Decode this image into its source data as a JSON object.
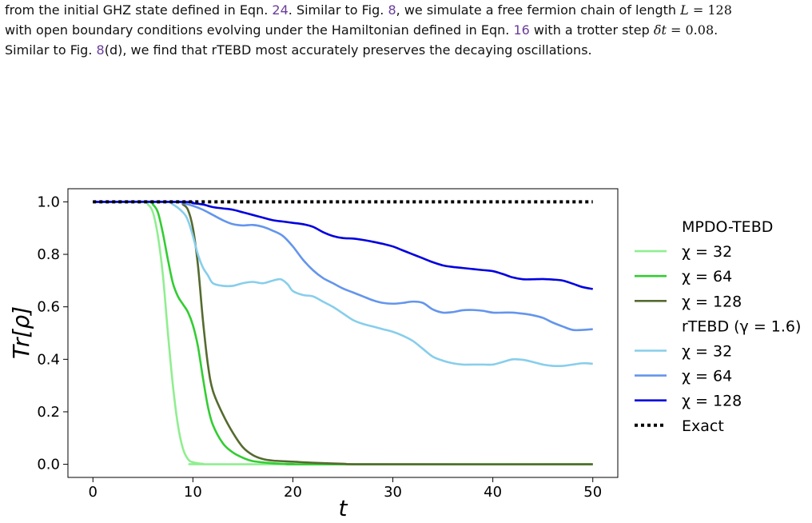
{
  "caption": {
    "line1": {
      "t1": "from the initial GHZ state defined in Eqn. ",
      "r1": "24",
      "t2": ". Similar to Fig. ",
      "r2": "8",
      "t3": ", we simulate a free fermion chain of length ",
      "m1": "L",
      "m2": " = 128"
    },
    "line2": {
      "t1": "with open boundary conditions evolving under the Hamiltonian defined in Eqn. ",
      "r1": "16",
      "t2": " with a trotter step ",
      "m1": "δt",
      "m2": " = 0.08",
      "t3": "."
    },
    "line3": {
      "t1": "Similar to Fig. ",
      "r1": "8",
      "t2": "(d), we find that rTEBD most accurately preserves the decaying oscillations."
    }
  },
  "chart_data": {
    "type": "line",
    "xlabel": "t",
    "ylabel": "Tr[ρ]",
    "xlim": [
      -2.5,
      52.5
    ],
    "ylim": [
      -0.05,
      1.05
    ],
    "xticks": [
      0,
      10,
      20,
      30,
      40,
      50
    ],
    "xtick_labels": [
      "0",
      "10",
      "20",
      "30",
      "40",
      "50"
    ],
    "yticks": [
      0.0,
      0.2,
      0.4,
      0.6,
      0.8,
      1.0
    ],
    "ytick_labels": [
      "0.0",
      "0.2",
      "0.4",
      "0.6",
      "0.8",
      "1.0"
    ],
    "grid": false,
    "legend_position": "outside-right",
    "legend_groups": [
      "MPDO-TEBD",
      "rTEBD (γ = 1.6)"
    ],
    "series": [
      {
        "name": "χ = 32",
        "group": "MPDO-TEBD",
        "color": "#90ee90",
        "dashed": false,
        "points": [
          [
            0,
            1.0
          ],
          [
            5,
            1.0
          ],
          [
            5.5,
            0.99
          ],
          [
            6,
            0.96
          ],
          [
            6.5,
            0.87
          ],
          [
            7,
            0.72
          ],
          [
            7.5,
            0.5
          ],
          [
            8,
            0.3
          ],
          [
            8.5,
            0.15
          ],
          [
            9,
            0.06
          ],
          [
            9.5,
            0.02
          ],
          [
            10,
            0.008
          ],
          [
            11,
            0.002
          ],
          [
            13,
            0.0
          ],
          [
            50,
            0.0
          ]
        ]
      },
      {
        "name": "χ = 64",
        "group": "MPDO-TEBD",
        "color": "#32cd32",
        "dashed": false,
        "points": [
          [
            0,
            1.0
          ],
          [
            5.5,
            1.0
          ],
          [
            6,
            0.99
          ],
          [
            6.5,
            0.96
          ],
          [
            7,
            0.88
          ],
          [
            7.5,
            0.78
          ],
          [
            8,
            0.69
          ],
          [
            8.5,
            0.64
          ],
          [
            9,
            0.61
          ],
          [
            9.5,
            0.58
          ],
          [
            10,
            0.53
          ],
          [
            10.5,
            0.45
          ],
          [
            11,
            0.33
          ],
          [
            11.5,
            0.22
          ],
          [
            12,
            0.15
          ],
          [
            13,
            0.08
          ],
          [
            14,
            0.045
          ],
          [
            15,
            0.025
          ],
          [
            16,
            0.012
          ],
          [
            18,
            0.004
          ],
          [
            20,
            0.001
          ],
          [
            22,
            0.0
          ],
          [
            50,
            0.0
          ]
        ]
      },
      {
        "name": "χ = 128",
        "group": "MPDO-TEBD",
        "color": "#556b2f",
        "dashed": false,
        "points": [
          [
            0,
            1.0
          ],
          [
            8.5,
            1.0
          ],
          [
            9,
            0.99
          ],
          [
            9.5,
            0.97
          ],
          [
            10,
            0.9
          ],
          [
            10.5,
            0.76
          ],
          [
            11,
            0.55
          ],
          [
            11.5,
            0.38
          ],
          [
            12,
            0.28
          ],
          [
            13,
            0.19
          ],
          [
            14,
            0.12
          ],
          [
            15,
            0.065
          ],
          [
            16,
            0.035
          ],
          [
            17,
            0.02
          ],
          [
            18,
            0.014
          ],
          [
            20,
            0.01
          ],
          [
            22,
            0.006
          ],
          [
            25,
            0.002
          ],
          [
            28,
            0.0
          ],
          [
            50,
            0.0
          ]
        ]
      },
      {
        "name": "χ = 32",
        "group": "rTEBD (γ = 1.6)",
        "color": "#87ceeb",
        "dashed": false,
        "points": [
          [
            0,
            1.0
          ],
          [
            7,
            1.0
          ],
          [
            8,
            0.99
          ],
          [
            9,
            0.96
          ],
          [
            9.5,
            0.93
          ],
          [
            10,
            0.87
          ],
          [
            10.5,
            0.8
          ],
          [
            11,
            0.75
          ],
          [
            11.5,
            0.72
          ],
          [
            12,
            0.69
          ],
          [
            13,
            0.68
          ],
          [
            14,
            0.68
          ],
          [
            15,
            0.69
          ],
          [
            16,
            0.695
          ],
          [
            17,
            0.69
          ],
          [
            18,
            0.7
          ],
          [
            18.8,
            0.705
          ],
          [
            19.5,
            0.685
          ],
          [
            20,
            0.66
          ],
          [
            21,
            0.645
          ],
          [
            22,
            0.64
          ],
          [
            23,
            0.62
          ],
          [
            24,
            0.6
          ],
          [
            25,
            0.575
          ],
          [
            26,
            0.55
          ],
          [
            27,
            0.535
          ],
          [
            28,
            0.525
          ],
          [
            29,
            0.515
          ],
          [
            30,
            0.505
          ],
          [
            31,
            0.49
          ],
          [
            32,
            0.47
          ],
          [
            33,
            0.44
          ],
          [
            34,
            0.41
          ],
          [
            35,
            0.395
          ],
          [
            36,
            0.385
          ],
          [
            37,
            0.38
          ],
          [
            38,
            0.38
          ],
          [
            39,
            0.38
          ],
          [
            40,
            0.38
          ],
          [
            41,
            0.39
          ],
          [
            42,
            0.4
          ],
          [
            43,
            0.398
          ],
          [
            44,
            0.39
          ],
          [
            45,
            0.38
          ],
          [
            46,
            0.375
          ],
          [
            47,
            0.375
          ],
          [
            48,
            0.38
          ],
          [
            49,
            0.385
          ],
          [
            50,
            0.383
          ]
        ]
      },
      {
        "name": "χ = 64",
        "group": "rTEBD (γ = 1.6)",
        "color": "#6495ed",
        "dashed": false,
        "points": [
          [
            0,
            1.0
          ],
          [
            8,
            1.0
          ],
          [
            9,
            0.995
          ],
          [
            10,
            0.985
          ],
          [
            11,
            0.97
          ],
          [
            12,
            0.95
          ],
          [
            13,
            0.93
          ],
          [
            14,
            0.915
          ],
          [
            15,
            0.91
          ],
          [
            16,
            0.912
          ],
          [
            17,
            0.905
          ],
          [
            18,
            0.89
          ],
          [
            19,
            0.87
          ],
          [
            20,
            0.83
          ],
          [
            21,
            0.78
          ],
          [
            22,
            0.74
          ],
          [
            23,
            0.71
          ],
          [
            24,
            0.69
          ],
          [
            25,
            0.67
          ],
          [
            26,
            0.655
          ],
          [
            27,
            0.64
          ],
          [
            28,
            0.625
          ],
          [
            29,
            0.615
          ],
          [
            30,
            0.612
          ],
          [
            31,
            0.615
          ],
          [
            32,
            0.62
          ],
          [
            33,
            0.615
          ],
          [
            34,
            0.59
          ],
          [
            35,
            0.578
          ],
          [
            36,
            0.58
          ],
          [
            37,
            0.587
          ],
          [
            38,
            0.588
          ],
          [
            39,
            0.585
          ],
          [
            40,
            0.578
          ],
          [
            41,
            0.578
          ],
          [
            42,
            0.578
          ],
          [
            43,
            0.574
          ],
          [
            44,
            0.568
          ],
          [
            45,
            0.558
          ],
          [
            46,
            0.54
          ],
          [
            47,
            0.525
          ],
          [
            48,
            0.512
          ],
          [
            49,
            0.512
          ],
          [
            50,
            0.515
          ]
        ]
      },
      {
        "name": "χ = 128",
        "group": "rTEBD (γ = 1.6)",
        "color": "#0000e0",
        "dashed": false,
        "points": [
          [
            0,
            1.0
          ],
          [
            9,
            1.0
          ],
          [
            10,
            0.995
          ],
          [
            11,
            0.99
          ],
          [
            12,
            0.98
          ],
          [
            13,
            0.975
          ],
          [
            14,
            0.97
          ],
          [
            15,
            0.96
          ],
          [
            16,
            0.95
          ],
          [
            17,
            0.94
          ],
          [
            18,
            0.93
          ],
          [
            19,
            0.925
          ],
          [
            20,
            0.92
          ],
          [
            21,
            0.915
          ],
          [
            22,
            0.905
          ],
          [
            23,
            0.885
          ],
          [
            24,
            0.87
          ],
          [
            25,
            0.862
          ],
          [
            26,
            0.86
          ],
          [
            27,
            0.855
          ],
          [
            28,
            0.848
          ],
          [
            29,
            0.84
          ],
          [
            30,
            0.83
          ],
          [
            31,
            0.815
          ],
          [
            32,
            0.8
          ],
          [
            33,
            0.785
          ],
          [
            34,
            0.77
          ],
          [
            35,
            0.758
          ],
          [
            36,
            0.752
          ],
          [
            37,
            0.748
          ],
          [
            38,
            0.744
          ],
          [
            39,
            0.74
          ],
          [
            40,
            0.736
          ],
          [
            41,
            0.725
          ],
          [
            42,
            0.712
          ],
          [
            43,
            0.705
          ],
          [
            44,
            0.705
          ],
          [
            45,
            0.706
          ],
          [
            46,
            0.704
          ],
          [
            47,
            0.7
          ],
          [
            48,
            0.688
          ],
          [
            49,
            0.675
          ],
          [
            50,
            0.668
          ]
        ]
      },
      {
        "name": "Exact",
        "group": "",
        "color": "#000000",
        "dashed": true,
        "points": [
          [
            0,
            1.0
          ],
          [
            50,
            1.0
          ]
        ]
      }
    ]
  }
}
